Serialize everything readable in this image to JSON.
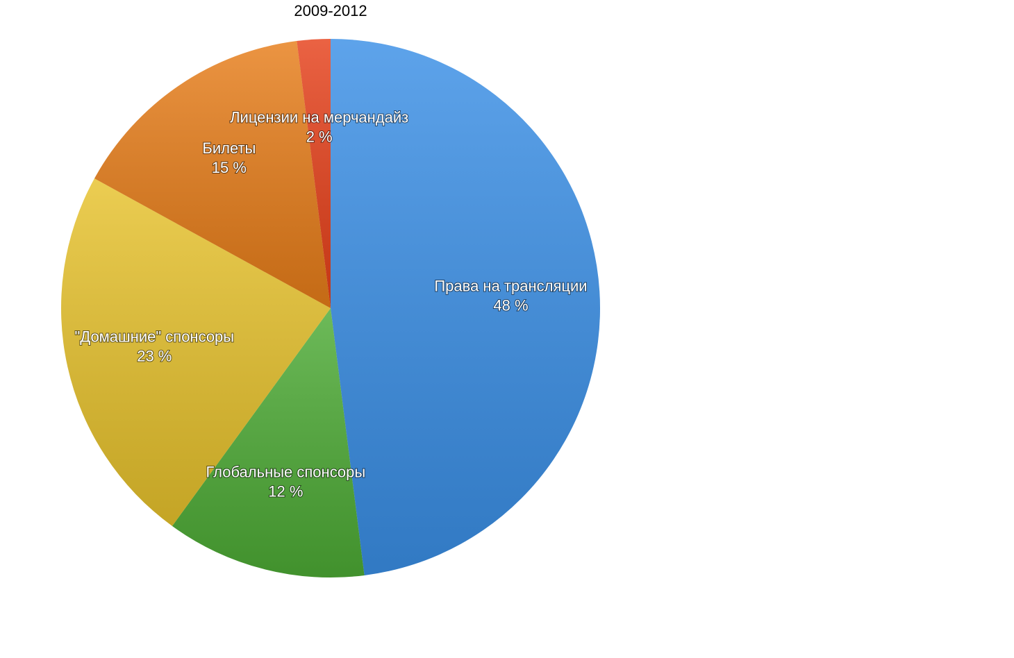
{
  "chart_data": {
    "type": "pie",
    "title": "2009-2012",
    "categories": [
      "Права на трансляции",
      "Глобальные спонсоры",
      "\"Домашние\" спонсоры",
      "Билеты",
      "Лицензии на мерчандайз"
    ],
    "values": [
      48,
      12,
      23,
      15,
      2
    ],
    "value_labels": [
      "48 %",
      "12 %",
      "23 %",
      "15 %",
      "2 %"
    ],
    "colors": [
      "#3a8fe6",
      "#4dab35",
      "#e7c22c",
      "#e77d19",
      "#e6401a"
    ]
  }
}
